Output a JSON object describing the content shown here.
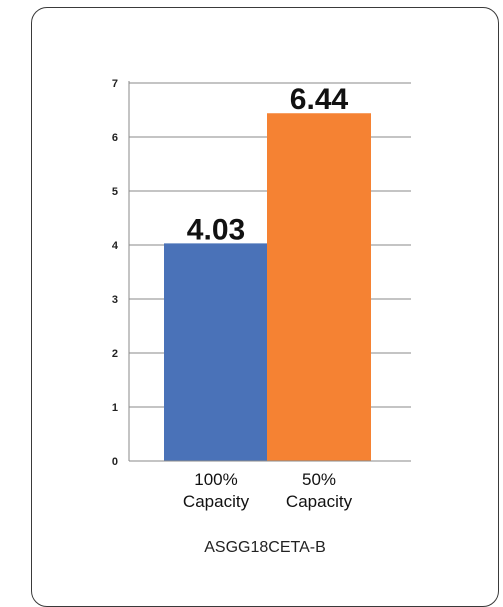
{
  "chart_data": {
    "type": "bar",
    "categories": [
      [
        "100%",
        "Capacity"
      ],
      [
        "50%",
        "Capacity"
      ]
    ],
    "values": [
      4.03,
      6.44
    ],
    "value_labels": [
      "4.03",
      "6.44"
    ],
    "colors": [
      "#4a72b8",
      "#f58233"
    ],
    "yticks": [
      "0",
      "1",
      "2",
      "3",
      "4",
      "5",
      "6",
      "7"
    ],
    "ylim": [
      0,
      7
    ],
    "grid": true,
    "caption": "ASGG18CETA-B"
  }
}
